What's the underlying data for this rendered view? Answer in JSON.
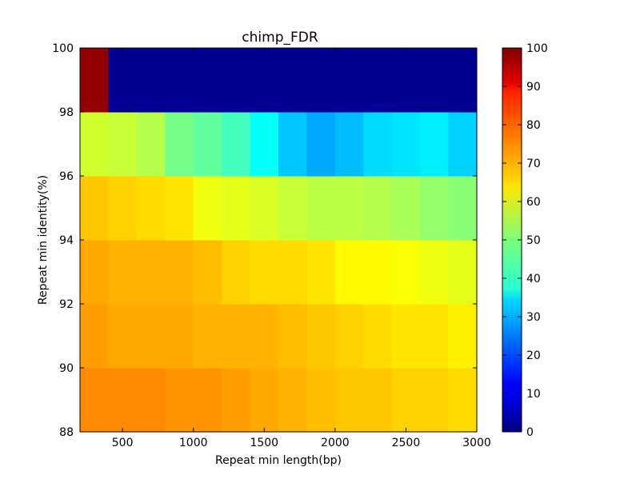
{
  "chart_data": {
    "type": "heatmap",
    "title": "chimp_FDR",
    "xlabel": "Repeat min length(bp)",
    "ylabel": "Repeat min identity(%)",
    "colormap": "jet",
    "x_edges": [
      200,
      400,
      600,
      800,
      1000,
      1200,
      1400,
      1600,
      1800,
      2000,
      2200,
      2400,
      2600,
      2800,
      3000
    ],
    "y_edges": [
      88,
      90,
      92,
      94,
      96,
      98,
      100
    ],
    "xlim": [
      200,
      3000
    ],
    "ylim": [
      88,
      100
    ],
    "xticks": [
      500,
      1000,
      1500,
      2000,
      2500,
      3000
    ],
    "yticks": [
      88,
      90,
      92,
      94,
      96,
      98,
      100
    ],
    "colorbar": {
      "min": 0,
      "max": 100,
      "ticks": [
        0,
        10,
        20,
        30,
        40,
        50,
        60,
        70,
        80,
        90,
        100
      ]
    },
    "values": [
      [
        74,
        74,
        74,
        73,
        73,
        72,
        71,
        70,
        69,
        68,
        68,
        67,
        67,
        66
      ],
      [
        72,
        71,
        71,
        71,
        70,
        70,
        70,
        69,
        68,
        67,
        66,
        65,
        65,
        64
      ],
      [
        71,
        70,
        70,
        70,
        69,
        67,
        66,
        66,
        65,
        63,
        63,
        62,
        61,
        60
      ],
      [
        68,
        67,
        66,
        65,
        61,
        60,
        59,
        57,
        56,
        56,
        55,
        54,
        52,
        51
      ],
      [
        58,
        57,
        55,
        49,
        47,
        44,
        38,
        32,
        29,
        31,
        34,
        35,
        36,
        33
      ],
      [
        98,
        2,
        2,
        2,
        2,
        2,
        2,
        2,
        2,
        2,
        2,
        2,
        2,
        2
      ]
    ]
  }
}
